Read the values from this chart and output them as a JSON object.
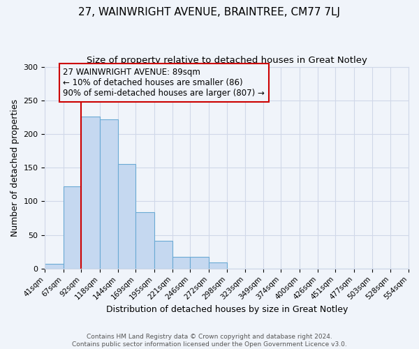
{
  "title": "27, WAINWRIGHT AVENUE, BRAINTREE, CM77 7LJ",
  "subtitle": "Size of property relative to detached houses in Great Notley",
  "xlabel": "Distribution of detached houses by size in Great Notley",
  "ylabel": "Number of detached properties",
  "bins": [
    41,
    67,
    92,
    118,
    144,
    169,
    195,
    221,
    246,
    272,
    298,
    323,
    349,
    374,
    400,
    426,
    451,
    477,
    503,
    528,
    554
  ],
  "bar_values": [
    7,
    122,
    226,
    222,
    155,
    84,
    41,
    17,
    17,
    9,
    0,
    0,
    0,
    0,
    0,
    0,
    0,
    0,
    0,
    0
  ],
  "bar_color": "#c5d8f0",
  "bar_edge_color": "#6aaad4",
  "grid_color": "#d0d8e8",
  "background_color": "#f0f4fa",
  "vline_x": 92,
  "vline_color": "#cc0000",
  "annotation_line1": "27 WAINWRIGHT AVENUE: 89sqm",
  "annotation_line2": "← 10% of detached houses are smaller (86)",
  "annotation_line3": "90% of semi-detached houses are larger (807) →",
  "ylim": [
    0,
    300
  ],
  "yticks": [
    0,
    50,
    100,
    150,
    200,
    250,
    300
  ],
  "footer_text": "Contains HM Land Registry data © Crown copyright and database right 2024.\nContains public sector information licensed under the Open Government Licence v3.0.",
  "title_fontsize": 11,
  "subtitle_fontsize": 9.5,
  "ylabel_fontsize": 9,
  "xlabel_fontsize": 9,
  "tick_label_fontsize": 7.5,
  "annotation_fontsize": 8.5,
  "footer_fontsize": 6.5
}
